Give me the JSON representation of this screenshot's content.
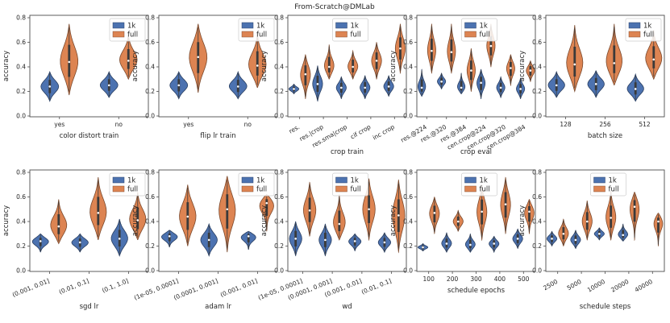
{
  "figure_title": "From-Scratch@DMLab",
  "colors": {
    "1k": "#4c72b0",
    "full": "#dd8452",
    "frame": "#4d4d4d",
    "grid": "#ebebeb"
  },
  "chart_data": [
    {
      "type": "violin",
      "xlabel": "color distort train",
      "ylabel": "accuracy",
      "ylim": [
        0,
        0.8
      ],
      "yticks": [
        "0.0",
        "0.2",
        "0.4",
        "0.6",
        "0.8"
      ],
      "categories": [
        "yes",
        "no"
      ],
      "tick_rotation": 0,
      "legend": [
        "1k",
        "full"
      ],
      "legend_position": "top-right",
      "series": [
        {
          "name": "1k",
          "groups": [
            {
              "min": 0.12,
              "max": 0.36,
              "median": 0.24
            },
            {
              "min": 0.15,
              "max": 0.36,
              "median": 0.25
            }
          ]
        },
        {
          "name": "full",
          "groups": [
            {
              "min": 0.17,
              "max": 0.75,
              "median": 0.44
            },
            {
              "min": 0.3,
              "max": 0.66,
              "median": 0.45
            }
          ]
        }
      ]
    },
    {
      "type": "violin",
      "xlabel": "flip lr train",
      "ylabel": "accuracy",
      "ylim": [
        0,
        0.8
      ],
      "yticks": [
        "0.0",
        "0.2",
        "0.4",
        "0.6",
        "0.8"
      ],
      "categories": [
        "yes",
        "no"
      ],
      "tick_rotation": 0,
      "legend": [
        "1k",
        "full"
      ],
      "legend_position": "top-right",
      "series": [
        {
          "name": "1k",
          "groups": [
            {
              "min": 0.14,
              "max": 0.36,
              "median": 0.25
            },
            {
              "min": 0.14,
              "max": 0.36,
              "median": 0.24
            }
          ]
        },
        {
          "name": "full",
          "groups": [
            {
              "min": 0.19,
              "max": 0.75,
              "median": 0.48
            },
            {
              "min": 0.23,
              "max": 0.67,
              "median": 0.41
            }
          ]
        }
      ]
    },
    {
      "type": "violin",
      "xlabel": "crop train",
      "ylabel": "accuracy",
      "ylim": [
        0,
        0.8
      ],
      "yticks": [
        "0.0",
        "0.2",
        "0.4",
        "0.6",
        "0.8"
      ],
      "categories": [
        "res.",
        "res.|crop",
        "res.sma|crop",
        "cif crop",
        "inc crop"
      ],
      "tick_rotation": -30,
      "legend": [
        "1k",
        "full"
      ],
      "legend_position": "top-center",
      "series": [
        {
          "name": "1k",
          "groups": [
            {
              "min": 0.18,
              "max": 0.26,
              "median": 0.22
            },
            {
              "min": 0.12,
              "max": 0.41,
              "median": 0.26
            },
            {
              "min": 0.14,
              "max": 0.32,
              "median": 0.23
            },
            {
              "min": 0.14,
              "max": 0.33,
              "median": 0.23
            },
            {
              "min": 0.16,
              "max": 0.33,
              "median": 0.24
            }
          ]
        },
        {
          "name": "full",
          "groups": [
            {
              "min": 0.14,
              "max": 0.5,
              "median": 0.34
            },
            {
              "min": 0.3,
              "max": 0.58,
              "median": 0.4
            },
            {
              "min": 0.3,
              "max": 0.53,
              "median": 0.4
            },
            {
              "min": 0.3,
              "max": 0.6,
              "median": 0.45
            },
            {
              "min": 0.35,
              "max": 0.75,
              "median": 0.55
            }
          ]
        }
      ]
    },
    {
      "type": "violin",
      "xlabel": "crop eval",
      "ylabel": "accuracy",
      "ylim": [
        0,
        0.8
      ],
      "yticks": [
        "0.0",
        "0.2",
        "0.4",
        "0.6",
        "0.8"
      ],
      "categories": [
        "res.@224",
        "res.@320",
        "res.@384",
        "cen.crop@224",
        "cen.crop@320",
        "cen.crop@384"
      ],
      "tick_rotation": -30,
      "legend": [
        "1k",
        "full"
      ],
      "legend_position": "top-center",
      "series": [
        {
          "name": "1k",
          "groups": [
            {
              "min": 0.16,
              "max": 0.38,
              "median": 0.23
            },
            {
              "min": 0.22,
              "max": 0.35,
              "median": 0.28
            },
            {
              "min": 0.18,
              "max": 0.35,
              "median": 0.23
            },
            {
              "min": 0.14,
              "max": 0.38,
              "median": 0.27
            },
            {
              "min": 0.15,
              "max": 0.32,
              "median": 0.23
            },
            {
              "min": 0.14,
              "max": 0.31,
              "median": 0.22
            }
          ]
        },
        {
          "name": "full",
          "groups": [
            {
              "min": 0.35,
              "max": 0.75,
              "median": 0.53
            },
            {
              "min": 0.35,
              "max": 0.75,
              "median": 0.52
            },
            {
              "min": 0.2,
              "max": 0.55,
              "median": 0.37
            },
            {
              "min": 0.4,
              "max": 0.75,
              "median": 0.57
            },
            {
              "min": 0.25,
              "max": 0.5,
              "median": 0.39
            },
            {
              "min": 0.28,
              "max": 0.45,
              "median": 0.37
            }
          ]
        }
      ]
    },
    {
      "type": "violin",
      "xlabel": "batch size",
      "ylabel": "accuracy",
      "ylim": [
        0,
        0.8
      ],
      "yticks": [
        "0.0",
        "0.2",
        "0.4",
        "0.6",
        "0.8"
      ],
      "categories": [
        "128",
        "256",
        "512"
      ],
      "tick_rotation": 0,
      "legend": [
        "1k",
        "full"
      ],
      "legend_position": "top-right",
      "series": [
        {
          "name": "1k",
          "groups": [
            {
              "min": 0.15,
              "max": 0.36,
              "median": 0.25
            },
            {
              "min": 0.15,
              "max": 0.37,
              "median": 0.26
            },
            {
              "min": 0.12,
              "max": 0.34,
              "median": 0.22
            }
          ]
        },
        {
          "name": "full",
          "groups": [
            {
              "min": 0.2,
              "max": 0.74,
              "median": 0.42
            },
            {
              "min": 0.25,
              "max": 0.75,
              "median": 0.43
            },
            {
              "min": 0.3,
              "max": 0.7,
              "median": 0.46
            }
          ]
        }
      ]
    },
    {
      "type": "violin",
      "xlabel": "sgd lr",
      "ylabel": "accuracy",
      "ylim": [
        0,
        0.8
      ],
      "yticks": [
        "0.0",
        "0.2",
        "0.4",
        "0.6",
        "0.8"
      ],
      "categories": [
        "(0.001, 0.01]",
        "(0.01, 0.1]",
        "(0.1, 1.0]"
      ],
      "tick_rotation": -22,
      "legend": [
        "1k",
        "full"
      ],
      "legend_position": "top-right",
      "series": [
        {
          "name": "1k",
          "groups": [
            {
              "min": 0.15,
              "max": 0.3,
              "median": 0.24
            },
            {
              "min": 0.15,
              "max": 0.3,
              "median": 0.23
            },
            {
              "min": 0.12,
              "max": 0.42,
              "median": 0.26
            }
          ]
        },
        {
          "name": "full",
          "groups": [
            {
              "min": 0.22,
              "max": 0.58,
              "median": 0.36
            },
            {
              "min": 0.25,
              "max": 0.76,
              "median": 0.47
            },
            {
              "min": 0.25,
              "max": 0.64,
              "median": 0.41
            }
          ]
        }
      ]
    },
    {
      "type": "violin",
      "xlabel": "adam lr",
      "ylabel": "accuracy",
      "ylim": [
        0,
        0.8
      ],
      "yticks": [
        "0.0",
        "0.2",
        "0.4",
        "0.6",
        "0.8"
      ],
      "categories": [
        "(1e-05, 0.0001]",
        "(0.0001, 0.001]",
        "(0.001, 0.01]"
      ],
      "tick_rotation": -22,
      "legend": [
        "1k",
        "full"
      ],
      "legend_position": "top-right",
      "series": [
        {
          "name": "1k",
          "groups": [
            {
              "min": 0.19,
              "max": 0.33,
              "median": 0.28
            },
            {
              "min": 0.12,
              "max": 0.38,
              "median": 0.25
            },
            {
              "min": 0.17,
              "max": 0.32,
              "median": 0.28
            }
          ]
        },
        {
          "name": "full",
          "groups": [
            {
              "min": 0.2,
              "max": 0.7,
              "median": 0.44
            },
            {
              "min": 0.15,
              "max": 0.77,
              "median": 0.5
            },
            {
              "min": 0.32,
              "max": 0.62,
              "median": 0.55
            }
          ]
        }
      ]
    },
    {
      "type": "violin",
      "xlabel": "wd",
      "ylabel": "accuracy",
      "ylim": [
        0,
        0.8
      ],
      "yticks": [
        "0.0",
        "0.2",
        "0.4",
        "0.6",
        "0.8"
      ],
      "categories": [
        "(1e-05, 0.0001]",
        "(0.0001, 0.001]",
        "(0.001, 0.01]",
        "(0.01, 0.1]"
      ],
      "tick_rotation": -22,
      "legend": [
        "1k",
        "full"
      ],
      "legend_position": "top-center",
      "series": [
        {
          "name": "1k",
          "groups": [
            {
              "min": 0.12,
              "max": 0.4,
              "median": 0.26
            },
            {
              "min": 0.12,
              "max": 0.38,
              "median": 0.25
            },
            {
              "min": 0.16,
              "max": 0.3,
              "median": 0.24
            },
            {
              "min": 0.15,
              "max": 0.31,
              "median": 0.23
            }
          ]
        },
        {
          "name": "full",
          "groups": [
            {
              "min": 0.28,
              "max": 0.72,
              "median": 0.49
            },
            {
              "min": 0.25,
              "max": 0.62,
              "median": 0.38
            },
            {
              "min": 0.25,
              "max": 0.75,
              "median": 0.5
            },
            {
              "min": 0.15,
              "max": 0.74,
              "median": 0.45
            }
          ]
        }
      ]
    },
    {
      "type": "violin",
      "xlabel": "schedule epochs",
      "ylabel": "accuracy",
      "ylim": [
        0,
        0.8
      ],
      "yticks": [
        "0.0",
        "0.2",
        "0.4",
        "0.6",
        "0.8"
      ],
      "categories": [
        "100",
        "200",
        "300",
        "400",
        "500"
      ],
      "tick_rotation": 0,
      "legend": [
        "1k",
        "full"
      ],
      "legend_position": "top-center",
      "series": [
        {
          "name": "1k",
          "groups": [
            {
              "min": 0.16,
              "max": 0.22,
              "median": 0.19
            },
            {
              "min": 0.15,
              "max": 0.31,
              "median": 0.22
            },
            {
              "min": 0.15,
              "max": 0.3,
              "median": 0.21
            },
            {
              "min": 0.15,
              "max": 0.28,
              "median": 0.22
            },
            {
              "min": 0.18,
              "max": 0.34,
              "median": 0.26
            }
          ]
        },
        {
          "name": "full",
          "groups": [
            {
              "min": 0.3,
              "max": 0.6,
              "median": 0.47
            },
            {
              "min": 0.32,
              "max": 0.49,
              "median": 0.4
            },
            {
              "min": 0.25,
              "max": 0.7,
              "median": 0.48
            },
            {
              "min": 0.3,
              "max": 0.76,
              "median": 0.54
            },
            {
              "min": 0.3,
              "max": 0.58,
              "median": 0.48
            }
          ]
        }
      ]
    },
    {
      "type": "violin",
      "xlabel": "schedule steps",
      "ylabel": "accuracy",
      "ylim": [
        0,
        0.8
      ],
      "yticks": [
        "0.0",
        "0.2",
        "0.4",
        "0.6",
        "0.8"
      ],
      "categories": [
        "2500",
        "5000",
        "10000",
        "20000",
        "40000"
      ],
      "tick_rotation": -30,
      "legend": [
        "1k",
        "full"
      ],
      "legend_position": "top-center",
      "series": [
        {
          "name": "1k",
          "groups": [
            {
              "min": 0.2,
              "max": 0.32,
              "median": 0.26
            },
            {
              "min": 0.18,
              "max": 0.33,
              "median": 0.25
            },
            {
              "min": 0.25,
              "max": 0.35,
              "median": 0.3
            },
            {
              "min": 0.24,
              "max": 0.38,
              "median": 0.29
            },
            {
              "min": 0.0,
              "max": 0.0,
              "median": 0.0
            }
          ]
        },
        {
          "name": "full",
          "groups": [
            {
              "min": 0.2,
              "max": 0.42,
              "median": 0.3
            },
            {
              "min": 0.25,
              "max": 0.57,
              "median": 0.4
            },
            {
              "min": 0.25,
              "max": 0.65,
              "median": 0.43
            },
            {
              "min": 0.25,
              "max": 0.64,
              "median": 0.52
            },
            {
              "min": 0.2,
              "max": 0.47,
              "median": 0.4
            }
          ]
        }
      ]
    }
  ]
}
